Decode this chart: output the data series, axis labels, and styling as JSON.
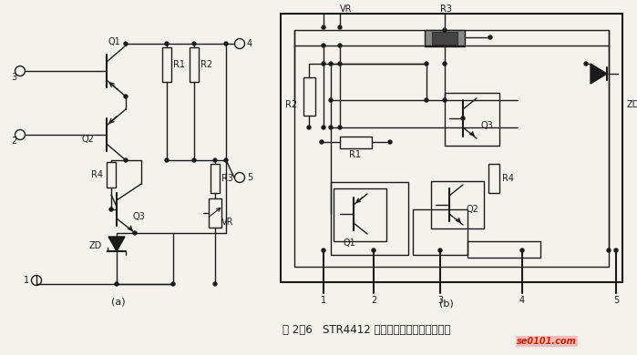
{
  "title": "图 2－6   STR4412 的内部电路及仿制印制板图",
  "bg_color": "#f5f2ee",
  "label_a": "(a)",
  "label_b": "(b)",
  "fig_width": 6.99,
  "fig_height": 3.9,
  "dpi": 100
}
